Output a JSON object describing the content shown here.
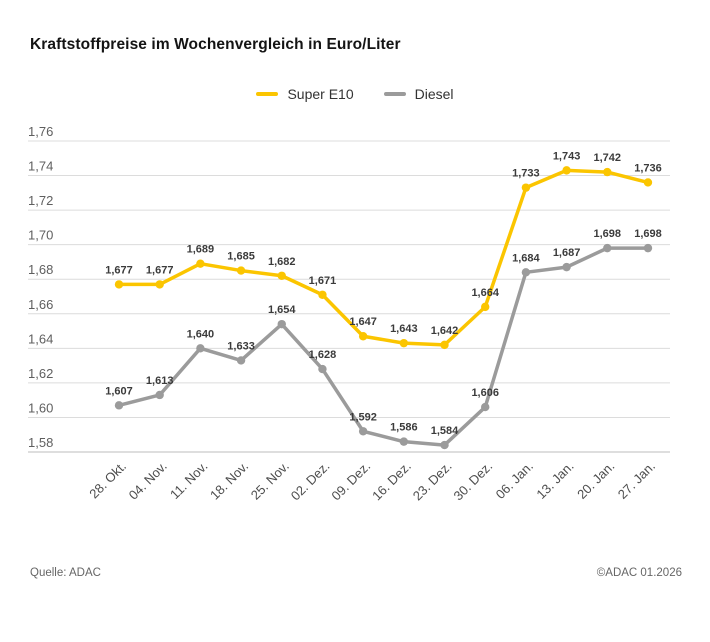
{
  "title": "Kraftstoffpreise im Wochenvergleich in Euro/Liter",
  "legend": {
    "items": [
      {
        "label": "Super E10",
        "color": "#FBC500"
      },
      {
        "label": "Diesel",
        "color": "#9B9B9B"
      }
    ]
  },
  "chart_data": {
    "type": "line",
    "title": "Kraftstoffpreise im Wochenvergleich in Euro/Liter",
    "categories": [
      "28. Okt.",
      "04. Nov.",
      "11. Nov.",
      "18. Nov.",
      "25. Nov.",
      "02. Dez.",
      "09. Dez.",
      "16. Dez.",
      "23. Dez.",
      "30. Dez.",
      "06. Jan.",
      "13. Jan.",
      "20. Jan.",
      "27. Jan."
    ],
    "series": [
      {
        "name": "Super E10",
        "color": "#FBC500",
        "values": [
          1.677,
          1.677,
          1.689,
          1.685,
          1.682,
          1.671,
          1.647,
          1.643,
          1.642,
          1.664,
          1.733,
          1.743,
          1.742,
          1.736
        ]
      },
      {
        "name": "Diesel",
        "color": "#9B9B9B",
        "values": [
          1.607,
          1.613,
          1.64,
          1.633,
          1.654,
          1.628,
          1.592,
          1.586,
          1.584,
          1.606,
          1.684,
          1.687,
          1.698,
          1.698
        ]
      }
    ],
    "xlabel": "",
    "ylabel": "Euro/Liter",
    "ylim": [
      1.58,
      1.76
    ],
    "ytick_step": 0.02,
    "ytick_labels": [
      "1,76",
      "1,74",
      "1,72",
      "1,70",
      "1,68",
      "1,66",
      "1,64",
      "1,62",
      "1,60",
      "1,58"
    ],
    "grid": true,
    "legend_position": "top-center",
    "point_labels": true,
    "decimal_separator": ","
  },
  "colors": {
    "grid_line": "#dcdcdc",
    "axis_line": "#bdbdbd",
    "tick_text": "#5f5f5f",
    "label_text": "#3b3b3b"
  },
  "footer": {
    "source": "Quelle: ADAC",
    "copyright": "©ADAC 01.2026"
  }
}
